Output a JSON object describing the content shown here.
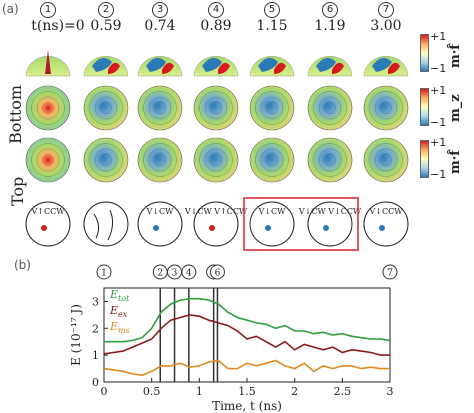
{
  "panel_a": {
    "label": "(a)",
    "time_prefix": "t(ns)=",
    "time_values": [
      "0",
      "0.59",
      "0.74",
      "0.89",
      "1.15",
      "1.19",
      "3.00"
    ],
    "step_labels": [
      "1",
      "2",
      "3",
      "4",
      "5",
      "6",
      "7"
    ],
    "row_labels": [
      "Bottom",
      "Top"
    ],
    "colorbar": [
      {
        "top": "+1",
        "bottom": "−1",
        "symbol": "m·f̂"
      },
      {
        "top": "+1",
        "bottom": "−1",
        "symbol": "m_z"
      },
      {
        "top": "+1",
        "bottom": "−1",
        "symbol": "m·f̂"
      }
    ],
    "schematic_labels": [
      "V↑CCW",
      "",
      "V↓CW",
      "V↓CW  V↑CCW",
      "V↓CW",
      "V↓CW  V↓CCW",
      "V↓CCW"
    ]
  },
  "panel_b": {
    "label": "(b)",
    "step_labels": [
      "1",
      "2",
      "3",
      "4",
      "5",
      "6",
      "7"
    ],
    "chart_data": {
      "type": "line",
      "xlabel": "Time, t (ns)",
      "ylabel": "E (10⁻¹⁷ J)",
      "xlim": [
        0,
        3
      ],
      "ylim": [
        0,
        3.5
      ],
      "xticks": [
        "0",
        "0.5",
        "1",
        "1.5",
        "2",
        "2.5",
        "3"
      ],
      "yticks": [
        "0",
        "1",
        "2",
        "3"
      ],
      "vlines": [
        0.59,
        0.74,
        0.89,
        1.15,
        1.19
      ],
      "step_marker_x": [
        0,
        0.59,
        0.74,
        0.89,
        1.15,
        1.19,
        3.0
      ],
      "x": [
        0,
        0.1,
        0.2,
        0.3,
        0.4,
        0.5,
        0.6,
        0.7,
        0.8,
        0.9,
        1.0,
        1.1,
        1.2,
        1.3,
        1.4,
        1.5,
        1.6,
        1.7,
        1.8,
        1.9,
        2.0,
        2.1,
        2.2,
        2.3,
        2.4,
        2.5,
        2.6,
        2.7,
        2.8,
        2.9,
        3.0
      ],
      "series": [
        {
          "name": "E_tot",
          "color": "#2e9e3e",
          "values": [
            1.5,
            1.5,
            1.5,
            1.55,
            1.65,
            2.0,
            2.6,
            2.9,
            3.05,
            3.1,
            3.1,
            3.05,
            2.9,
            2.6,
            2.4,
            2.3,
            2.2,
            2.15,
            2.0,
            2.1,
            1.9,
            1.9,
            1.8,
            1.85,
            1.75,
            1.8,
            1.7,
            1.65,
            1.6,
            1.6,
            1.55
          ]
        },
        {
          "name": "E_ex",
          "color": "#8b1a1a",
          "values": [
            1.05,
            1.1,
            1.15,
            1.3,
            1.45,
            1.6,
            2.0,
            2.3,
            2.4,
            2.5,
            2.45,
            2.3,
            2.2,
            2.1,
            1.9,
            1.6,
            1.7,
            1.5,
            1.3,
            1.5,
            1.2,
            1.4,
            1.3,
            1.2,
            1.3,
            1.1,
            1.2,
            1.15,
            1.1,
            1.0,
            1.0
          ]
        },
        {
          "name": "E_ms",
          "color": "#e08a1e",
          "values": [
            0.5,
            0.45,
            0.4,
            0.3,
            0.25,
            0.4,
            0.6,
            0.6,
            0.7,
            0.55,
            0.6,
            0.75,
            0.8,
            0.5,
            0.5,
            0.7,
            0.6,
            0.7,
            0.8,
            0.6,
            0.5,
            0.7,
            0.4,
            0.6,
            0.5,
            0.6,
            0.6,
            0.5,
            0.55,
            0.5,
            0.5
          ]
        }
      ]
    }
  }
}
